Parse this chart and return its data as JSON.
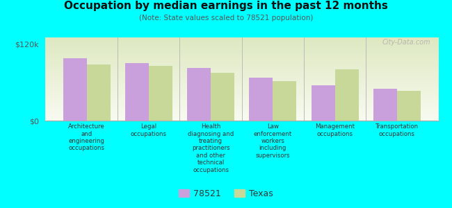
{
  "title": "Occupation by median earnings in the past 12 months",
  "subtitle": "(Note: State values scaled to 78521 population)",
  "background_color": "#00FFFF",
  "plot_bg_top": "#dde8c0",
  "plot_bg_bottom": "#f8faf0",
  "categories": [
    "Architecture\nand\nengineering\noccupations",
    "Legal\noccupations",
    "Health\ndiagnosing and\ntreating\npractitioners\nand other\ntechnical\noccupations",
    "Law\nenforcement\nworkers\nincluding\nsupervisors",
    "Management\noccupations",
    "Transportation\noccupations"
  ],
  "values_78521": [
    97000,
    90000,
    82000,
    67000,
    55000,
    50000
  ],
  "values_texas": [
    88000,
    86000,
    75000,
    62000,
    80000,
    47000
  ],
  "color_78521": "#c9a0dc",
  "color_texas": "#c8d898",
  "ylim": [
    0,
    130000
  ],
  "yticks": [
    0,
    120000
  ],
  "ytick_labels": [
    "$0",
    "$120k"
  ],
  "bar_width": 0.38,
  "legend_labels": [
    "78521",
    "Texas"
  ],
  "watermark": "City-Data.com"
}
